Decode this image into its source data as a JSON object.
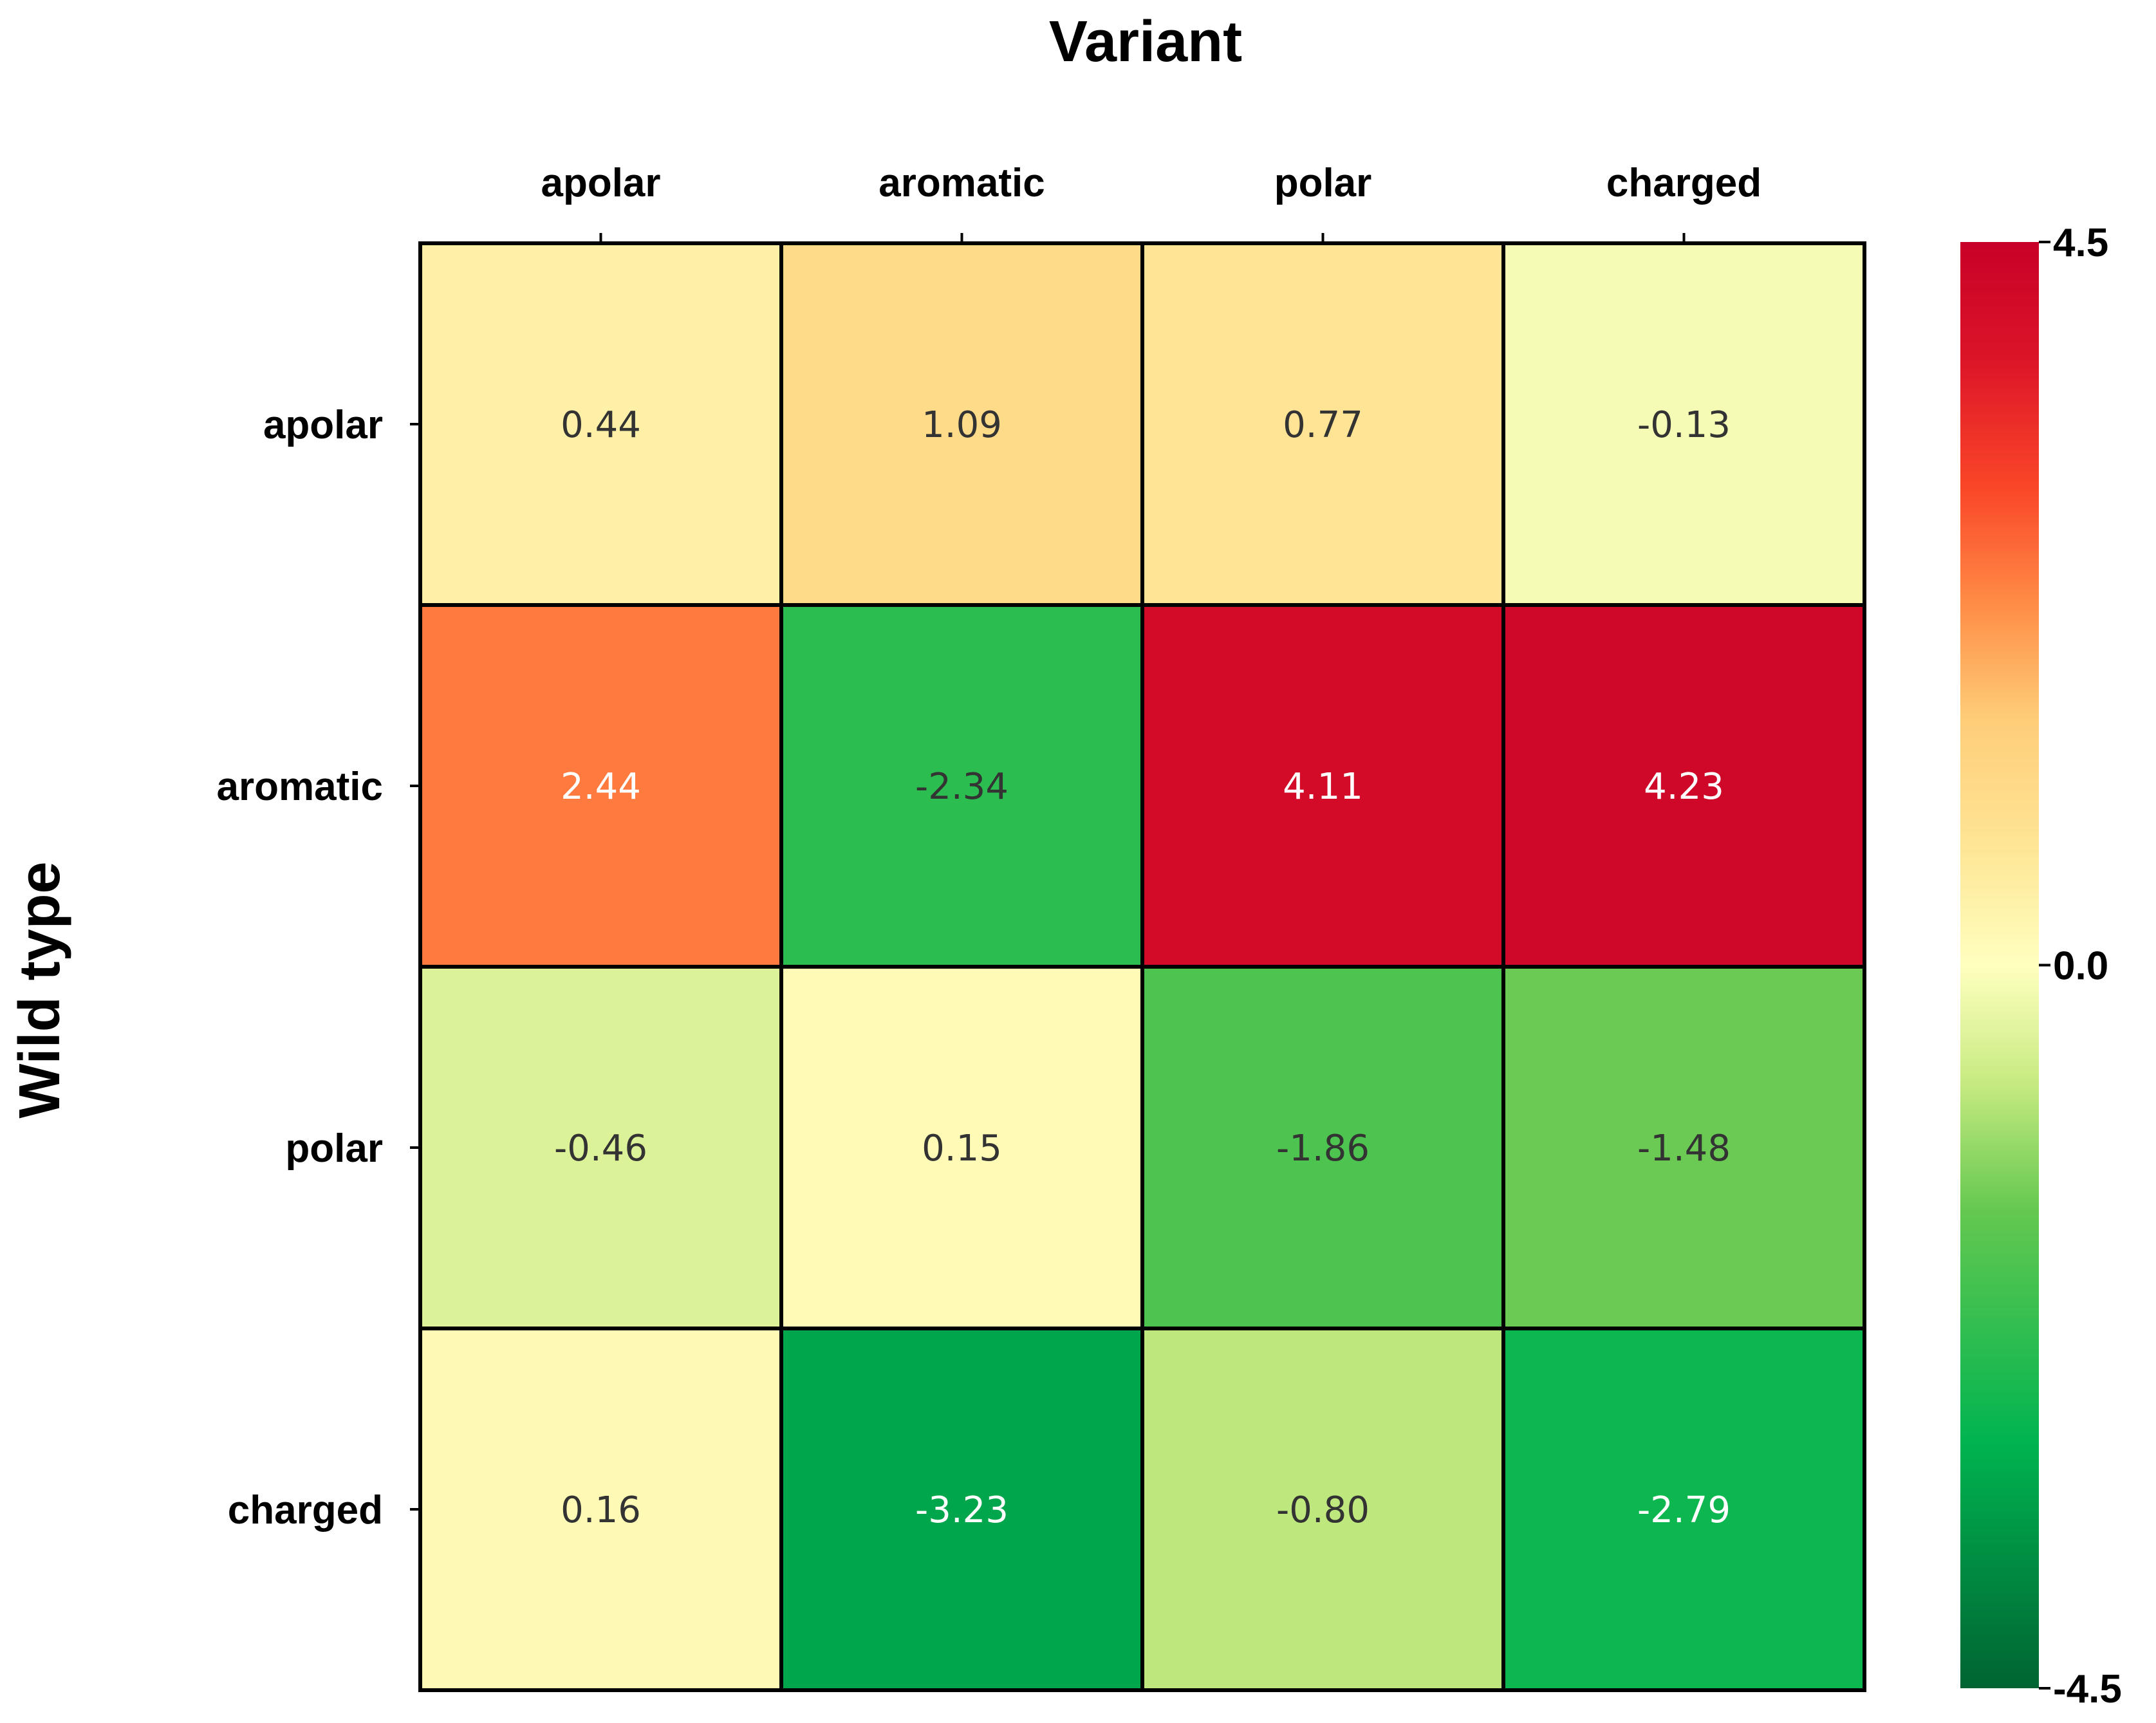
{
  "chart_data": {
    "type": "heatmap",
    "title": "Variant",
    "xlabel": "Variant",
    "ylabel": "Wild type",
    "x_categories": [
      "apolar",
      "aromatic",
      "polar",
      "charged"
    ],
    "y_categories": [
      "apolar",
      "aromatic",
      "polar",
      "charged"
    ],
    "values": [
      [
        0.44,
        1.09,
        0.77,
        -0.13
      ],
      [
        2.44,
        -2.34,
        4.11,
        4.23
      ],
      [
        -0.46,
        0.15,
        -1.86,
        -1.48
      ],
      [
        0.16,
        -3.23,
        -0.8,
        -2.79
      ]
    ],
    "value_labels": [
      [
        "0.44",
        "1.09",
        "0.77",
        "-0.13"
      ],
      [
        "2.44",
        "-2.34",
        "4.11",
        "4.23"
      ],
      [
        "-0.46",
        "0.15",
        "-1.86",
        "-1.48"
      ],
      [
        "0.16",
        "-3.23",
        "-0.80",
        "-2.79"
      ]
    ],
    "colorbar": {
      "min": -4.5,
      "max": 4.5,
      "ticks": [
        4.5,
        0.0,
        -4.5
      ],
      "tick_labels": [
        "4.5",
        "0.0",
        "-4.5"
      ],
      "colormap": "RdYlGn_r"
    },
    "x_axis_position": "top",
    "grid": false,
    "legend": "colorbar-right"
  }
}
